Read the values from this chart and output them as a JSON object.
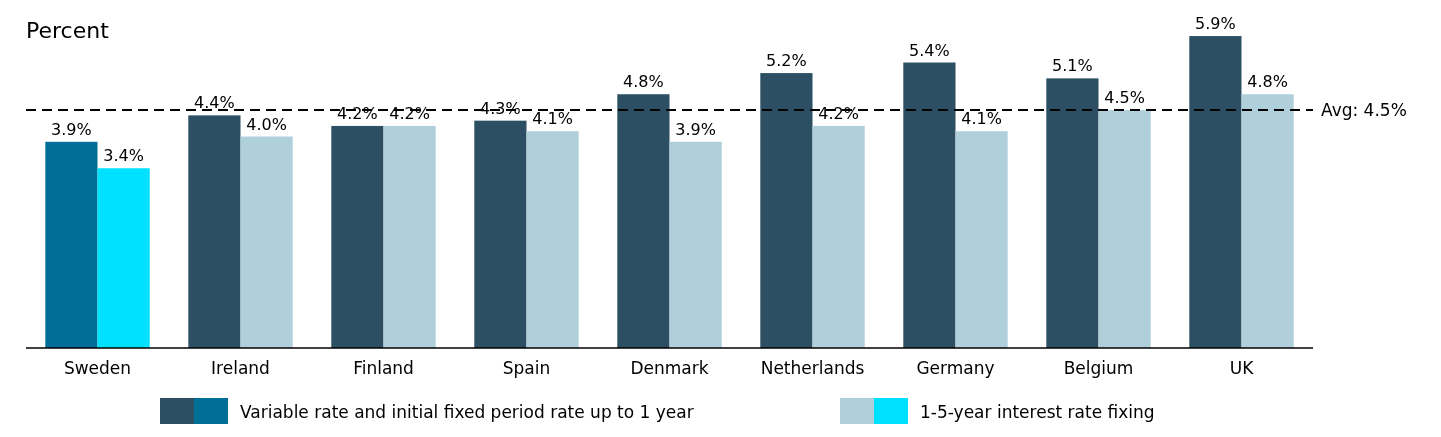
{
  "chart_data": {
    "type": "bar",
    "ylabel": "Percent",
    "categories": [
      "Sweden",
      "Ireland",
      "Finland",
      "Spain",
      "Denmark",
      "Netherlands",
      "Germany",
      "Belgium",
      "UK"
    ],
    "series": [
      {
        "name": "Variable rate and initial fixed period rate up to 1 year",
        "color": "#2c4f63",
        "colors": [
          "#006e96",
          "#2c4f63",
          "#2c4f63",
          "#2c4f63",
          "#2c4f63",
          "#2c4f63",
          "#2c4f63",
          "#2c4f63",
          "#2c4f63"
        ],
        "values": [
          3.9,
          4.4,
          4.2,
          4.3,
          4.8,
          5.2,
          5.4,
          5.1,
          5.9
        ],
        "value_labels": [
          "3.9%",
          "4.4%",
          "4.2%",
          "4.3%",
          "4.8%",
          "5.2%",
          "5.4%",
          "5.1%",
          "5.9%"
        ]
      },
      {
        "name": "1-5-year interest rate fixing",
        "color": "#afd0db",
        "colors": [
          "#00e1ff",
          "#afd0db",
          "#afd0db",
          "#afd0db",
          "#afd0db",
          "#afd0db",
          "#afd0db",
          "#afd0db",
          "#afd0db"
        ],
        "values": [
          3.4,
          4.0,
          4.2,
          4.1,
          3.9,
          4.2,
          4.1,
          4.5,
          4.8
        ],
        "value_labels": [
          "3.4%",
          "4.0%",
          "4.2%",
          "4.1%",
          "3.9%",
          "4.2%",
          "4.1%",
          "4.5%",
          "4.8%"
        ]
      }
    ],
    "ref_lines": [
      {
        "axis": "y",
        "value": 4.5,
        "label": "Avg: 4.5%",
        "color": "#000000",
        "line_style": "dashed"
      }
    ],
    "legend": "bottom"
  }
}
